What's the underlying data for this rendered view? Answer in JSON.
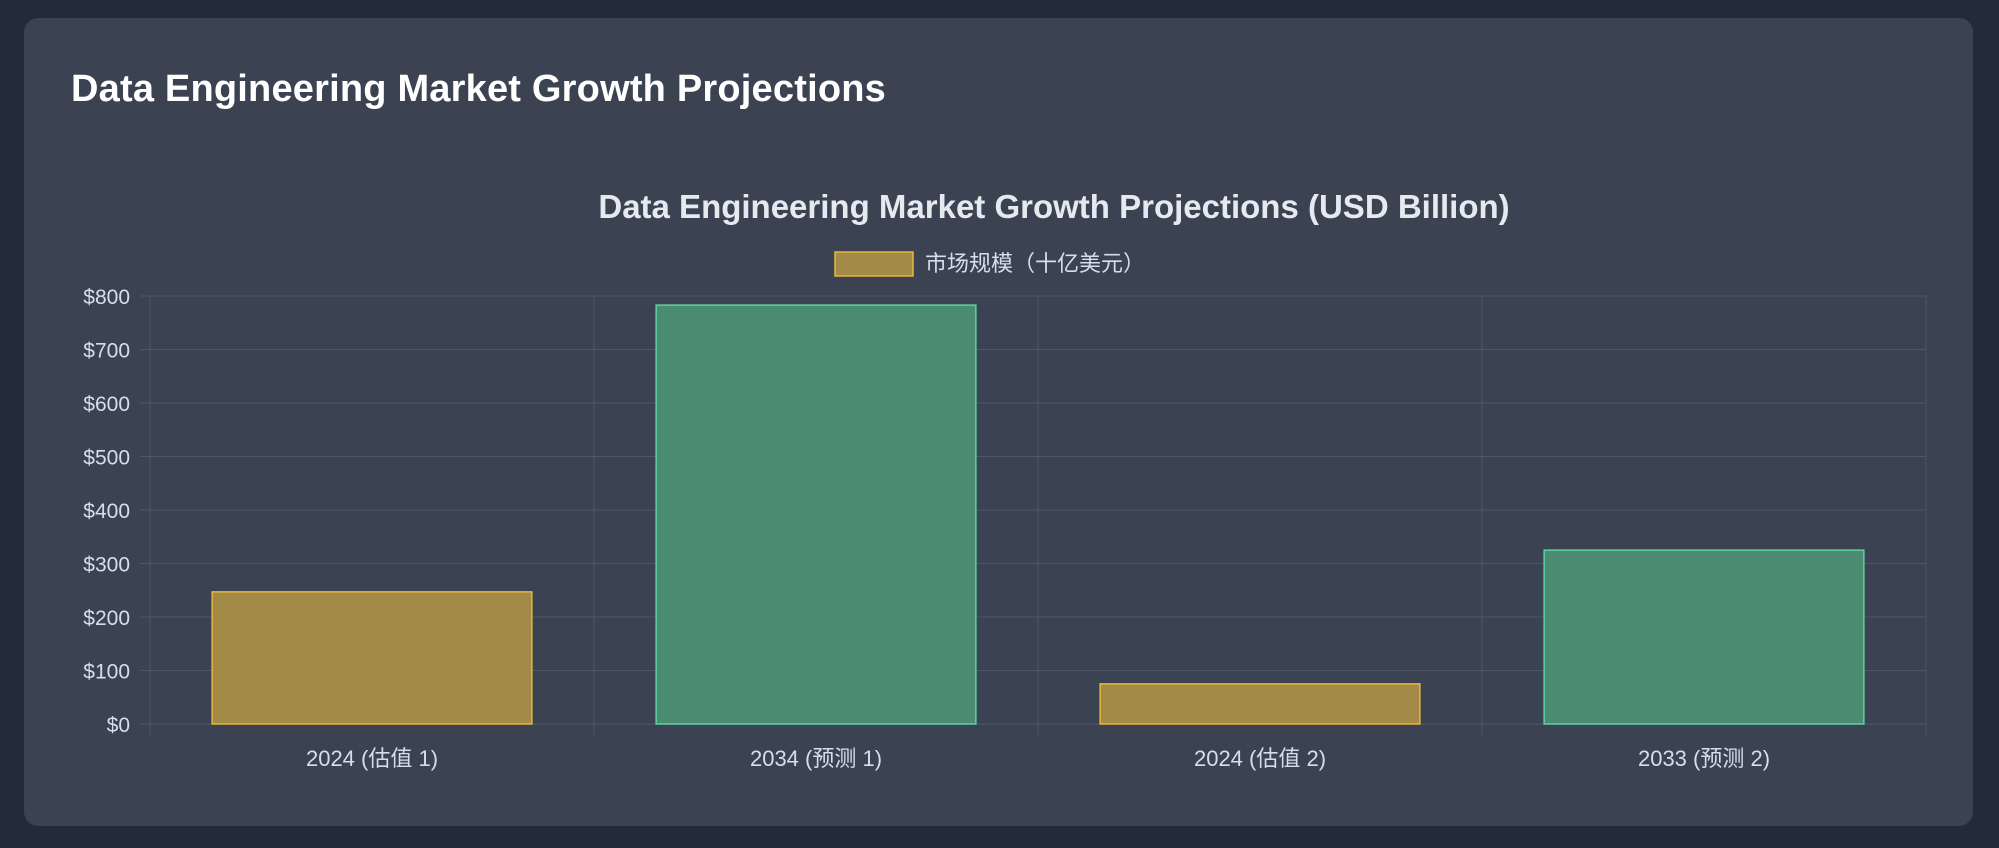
{
  "page": {
    "title": "Data Engineering Market Growth Projections"
  },
  "colors": {
    "page_background": "#232a3a",
    "card_background": "#3b4252",
    "gold_fill": "#a38b47",
    "gold_border": "#e7b73e",
    "green_fill": "#4b8b72",
    "green_border": "#5ed3a0",
    "grid": "#4f5768",
    "text": "#d8dee9",
    "title_text": "#e5e9f0"
  },
  "chart_data": {
    "type": "bar",
    "title": "Data Engineering Market Growth Projections (USD Billion)",
    "legend": [
      {
        "label": "市场规模（十亿美元）",
        "color": "gold"
      }
    ],
    "legend_position": "top",
    "categories": [
      "2024 (估值 1)",
      "2034 (预测 1)",
      "2024 (估值 2)",
      "2033 (预测 2)"
    ],
    "values": [
      247,
      783,
      75,
      325
    ],
    "bar_colors": [
      "gold",
      "green",
      "gold",
      "green"
    ],
    "ylim": [
      0,
      800
    ],
    "y_ticks": [
      0,
      100,
      200,
      300,
      400,
      500,
      600,
      700,
      800
    ],
    "y_tick_prefix": "$",
    "xlabel": "",
    "ylabel": "",
    "grid": true
  }
}
